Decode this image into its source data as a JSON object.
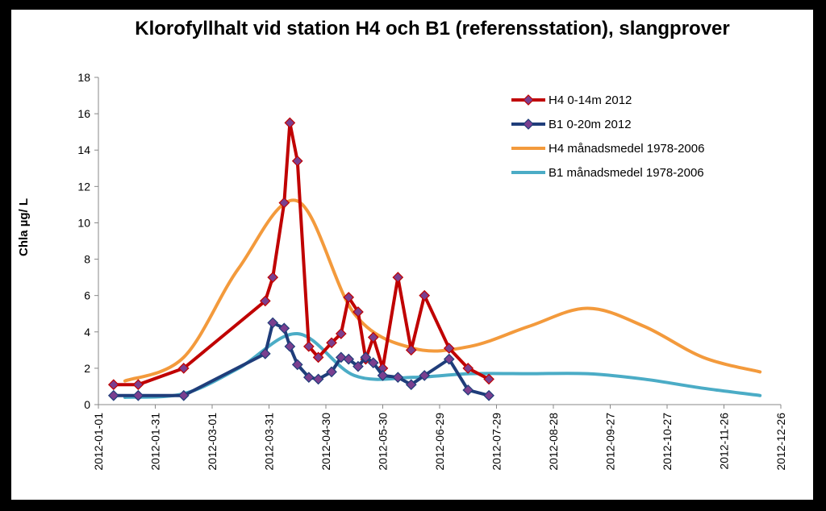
{
  "chart_data": {
    "type": "line",
    "title": "Klorofyllhalt vid station H4 och B1 (referensstation), slangprover",
    "ylabel": "Chla µg/ L",
    "xlabel": "",
    "ylim": [
      0,
      18
    ],
    "yticks": [
      0,
      2,
      4,
      6,
      8,
      10,
      12,
      14,
      16,
      18
    ],
    "xlim": [
      "2012-01-01",
      "2012-12-26"
    ],
    "xticks": [
      "2012-01-01",
      "2012-01-31",
      "2012-03-01",
      "2012-03-31",
      "2012-04-30",
      "2012-05-30",
      "2012-06-29",
      "2012-07-29",
      "2012-08-28",
      "2012-09-27",
      "2012-10-27",
      "2012-11-26",
      "2012-12-26"
    ],
    "grid": false,
    "legend_position": "top-right",
    "series": [
      {
        "name": "H4 0-14m 2012",
        "color": "#c00000",
        "marker": "diamond",
        "smooth": false,
        "points": [
          [
            "2012-01-09",
            1.1
          ],
          [
            "2012-01-22",
            1.1
          ],
          [
            "2012-02-15",
            2.0
          ],
          [
            "2012-03-29",
            5.7
          ],
          [
            "2012-04-02",
            7.0
          ],
          [
            "2012-04-08",
            11.1
          ],
          [
            "2012-04-11",
            15.5
          ],
          [
            "2012-04-15",
            13.4
          ],
          [
            "2012-04-21",
            3.2
          ],
          [
            "2012-04-26",
            2.6
          ],
          [
            "2012-05-03",
            3.4
          ],
          [
            "2012-05-08",
            3.9
          ],
          [
            "2012-05-12",
            5.9
          ],
          [
            "2012-05-17",
            5.1
          ],
          [
            "2012-05-21",
            2.5
          ],
          [
            "2012-05-25",
            3.7
          ],
          [
            "2012-05-30",
            2.0
          ],
          [
            "2012-06-07",
            7.0
          ],
          [
            "2012-06-14",
            3.0
          ],
          [
            "2012-06-21",
            6.0
          ],
          [
            "2012-07-04",
            3.1
          ],
          [
            "2012-07-14",
            2.0
          ],
          [
            "2012-07-25",
            1.4
          ]
        ]
      },
      {
        "name": "B1 0-20m 2012",
        "color": "#1f3d7a",
        "marker": "diamond",
        "smooth": false,
        "points": [
          [
            "2012-01-09",
            0.5
          ],
          [
            "2012-01-22",
            0.5
          ],
          [
            "2012-02-15",
            0.5
          ],
          [
            "2012-03-29",
            2.8
          ],
          [
            "2012-04-02",
            4.5
          ],
          [
            "2012-04-08",
            4.2
          ],
          [
            "2012-04-11",
            3.2
          ],
          [
            "2012-04-15",
            2.2
          ],
          [
            "2012-04-21",
            1.5
          ],
          [
            "2012-04-26",
            1.4
          ],
          [
            "2012-05-03",
            1.8
          ],
          [
            "2012-05-08",
            2.6
          ],
          [
            "2012-05-12",
            2.5
          ],
          [
            "2012-05-17",
            2.1
          ],
          [
            "2012-05-21",
            2.6
          ],
          [
            "2012-05-25",
            2.3
          ],
          [
            "2012-05-30",
            1.6
          ],
          [
            "2012-06-07",
            1.5
          ],
          [
            "2012-06-14",
            1.1
          ],
          [
            "2012-06-21",
            1.6
          ],
          [
            "2012-07-04",
            2.5
          ],
          [
            "2012-07-14",
            0.8
          ],
          [
            "2012-07-25",
            0.5
          ]
        ]
      },
      {
        "name": "H4 månadsmedel 1978-2006",
        "color": "#f39a3c",
        "marker": "none",
        "smooth": true,
        "points": [
          [
            "2012-01-15",
            1.3
          ],
          [
            "2012-02-15",
            2.6
          ],
          [
            "2012-03-15",
            7.5
          ],
          [
            "2012-04-15",
            11.2
          ],
          [
            "2012-05-15",
            5.0
          ],
          [
            "2012-06-15",
            3.1
          ],
          [
            "2012-07-15",
            3.2
          ],
          [
            "2012-08-15",
            4.3
          ],
          [
            "2012-09-15",
            5.3
          ],
          [
            "2012-10-15",
            4.3
          ],
          [
            "2012-11-15",
            2.6
          ],
          [
            "2012-12-15",
            1.8
          ]
        ]
      },
      {
        "name": "B1 månadsmedel 1978-2006",
        "color": "#4bacc6",
        "marker": "none",
        "smooth": true,
        "points": [
          [
            "2012-01-15",
            0.4
          ],
          [
            "2012-02-15",
            0.6
          ],
          [
            "2012-03-15",
            2.0
          ],
          [
            "2012-04-15",
            3.9
          ],
          [
            "2012-05-15",
            1.6
          ],
          [
            "2012-06-15",
            1.5
          ],
          [
            "2012-07-15",
            1.7
          ],
          [
            "2012-08-15",
            1.7
          ],
          [
            "2012-09-15",
            1.7
          ],
          [
            "2012-10-15",
            1.4
          ],
          [
            "2012-11-15",
            0.9
          ],
          [
            "2012-12-15",
            0.5
          ]
        ]
      }
    ]
  }
}
